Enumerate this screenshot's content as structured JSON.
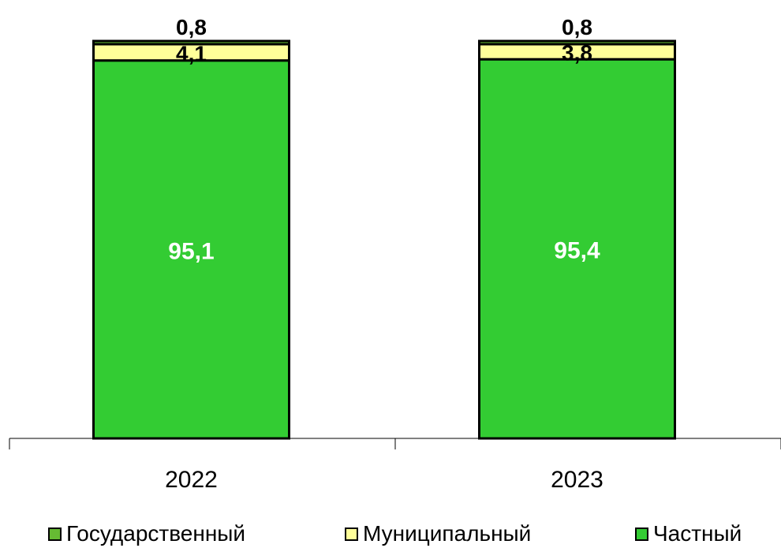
{
  "chart_data": {
    "type": "bar",
    "stacked": true,
    "categories": [
      "2022",
      "2023"
    ],
    "series": [
      {
        "name": "Частный",
        "values": [
          95.1,
          95.4
        ],
        "labels": [
          "95,1",
          "95,4"
        ],
        "color": "#33cc33",
        "label_color": "#ffffff"
      },
      {
        "name": "Муниципальный",
        "values": [
          4.1,
          3.8
        ],
        "labels": [
          "4,1",
          "3,8"
        ],
        "color": "#ffff99",
        "label_color": "#000000"
      },
      {
        "name": "Государственный",
        "values": [
          0.8,
          0.8
        ],
        "labels": [
          "0,8",
          "0,8"
        ],
        "color": "#66bb33",
        "label_color": "#000000"
      }
    ],
    "legend": {
      "position": "bottom",
      "order": [
        "Государственный",
        "Муниципальный",
        "Частный"
      ]
    },
    "ylim": [
      0,
      100
    ],
    "grid": false,
    "title": "",
    "xlabel": "",
    "ylabel": ""
  }
}
